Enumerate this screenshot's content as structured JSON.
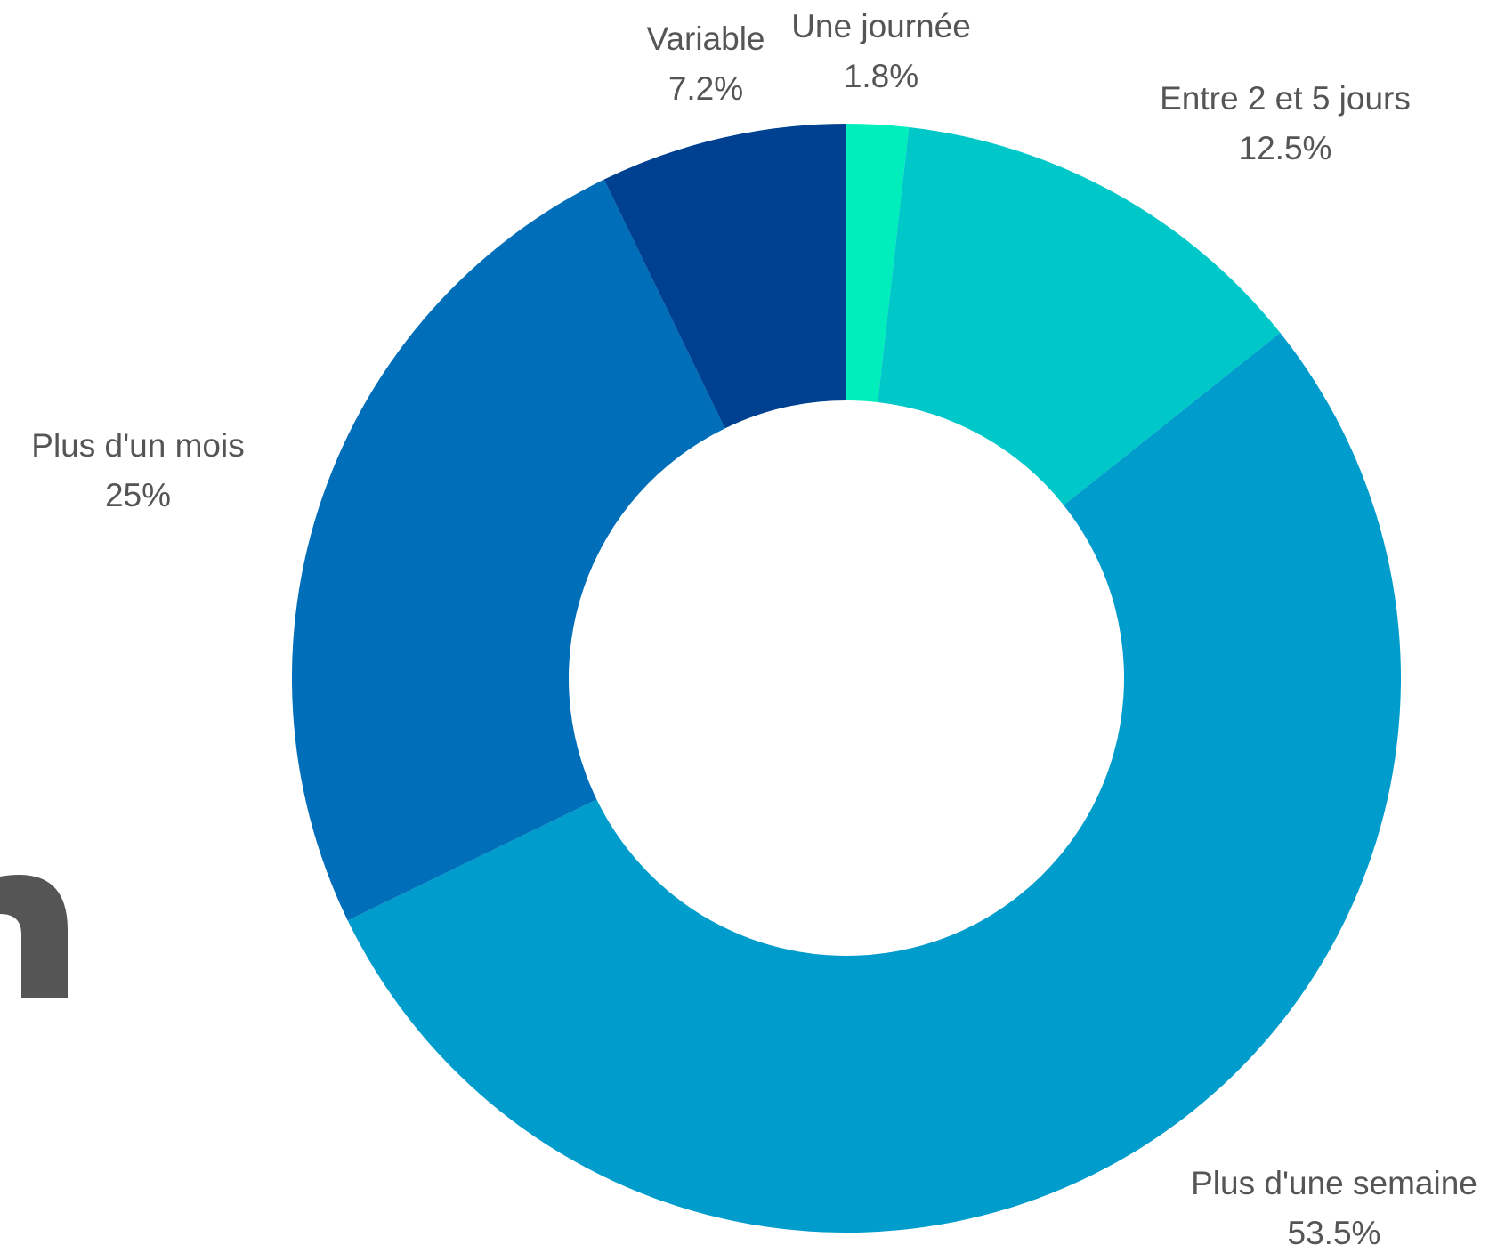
{
  "chart_data": {
    "type": "donut",
    "categories": [
      "Une journée",
      "Entre 2 et 5 jours",
      "Plus d'une semaine",
      "Plus d'un mois",
      "Variable"
    ],
    "values": [
      1.8,
      12.5,
      53.5,
      25,
      7.2
    ],
    "value_labels": [
      "1.8%",
      "12.5%",
      "53.5%",
      "25%",
      "7.2%"
    ],
    "colors": [
      "#00eebb",
      "#00c8c8",
      "#009ccc",
      "#006eb8",
      "#004090"
    ]
  }
}
